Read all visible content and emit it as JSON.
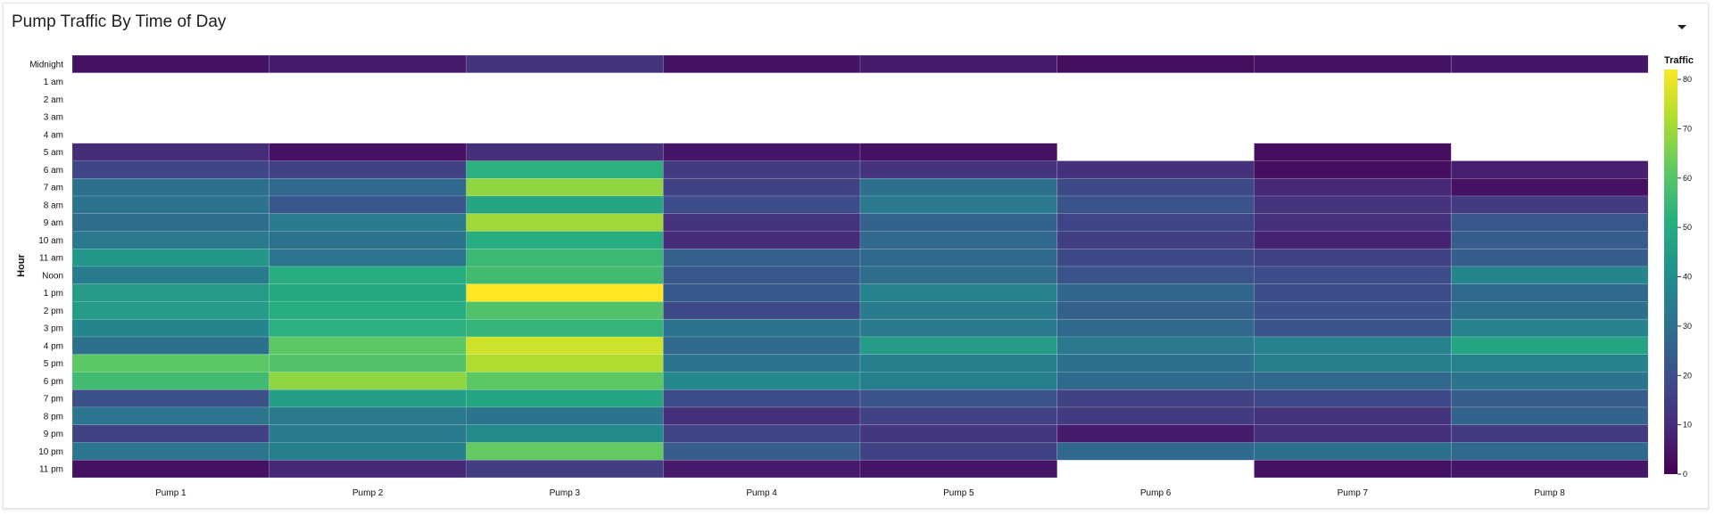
{
  "panel": {
    "title": "Pump Traffic By Time of Day",
    "menu_icon": "chevron-down-icon"
  },
  "chart_data": {
    "type": "heatmap",
    "title": "Pump Traffic By Time of Day",
    "xlabel": "",
    "ylabel": "Hour",
    "color_scale": "viridis",
    "legend_title": "Traffic",
    "legend_placement": "right",
    "legend_ticks": [
      0,
      10,
      20,
      30,
      40,
      50,
      60,
      70,
      80
    ],
    "zlim": [
      0,
      82
    ],
    "x_categories": [
      "Pump 1",
      "Pump 2",
      "Pump 3",
      "Pump 4",
      "Pump 5",
      "Pump 6",
      "Pump 7",
      "Pump 8"
    ],
    "y_categories": [
      "Midnight",
      "1 am",
      "2 am",
      "3 am",
      "4 am",
      "5 am",
      "6 am",
      "7 am",
      "8 am",
      "9 am",
      "10 am",
      "11 am",
      "Noon",
      "1 pm",
      "2 pm",
      "3 pm",
      "4 pm",
      "5 pm",
      "6 pm",
      "7 pm",
      "8 pm",
      "9 pm",
      "10 pm",
      "11 pm"
    ],
    "values": [
      [
        4,
        6,
        12,
        4,
        6,
        3,
        4,
        5
      ],
      [
        null,
        null,
        null,
        null,
        null,
        null,
        null,
        null
      ],
      [
        null,
        null,
        null,
        null,
        null,
        null,
        null,
        null
      ],
      [
        null,
        null,
        null,
        null,
        null,
        null,
        null,
        null
      ],
      [
        null,
        null,
        null,
        null,
        null,
        null,
        null,
        null
      ],
      [
        10,
        4,
        11,
        5,
        4,
        null,
        3,
        null
      ],
      [
        17,
        16,
        52,
        14,
        12,
        11,
        3,
        7
      ],
      [
        30,
        28,
        68,
        16,
        30,
        18,
        9,
        4
      ],
      [
        31,
        22,
        48,
        19,
        33,
        21,
        12,
        14
      ],
      [
        29,
        34,
        70,
        12,
        26,
        17,
        11,
        22
      ],
      [
        33,
        31,
        51,
        10,
        28,
        15,
        8,
        24
      ],
      [
        43,
        32,
        55,
        25,
        28,
        18,
        16,
        24
      ],
      [
        34,
        51,
        56,
        22,
        29,
        21,
        19,
        37
      ],
      [
        45,
        49,
        82,
        23,
        36,
        27,
        19,
        28
      ],
      [
        45,
        51,
        59,
        18,
        34,
        25,
        20,
        30
      ],
      [
        37,
        52,
        54,
        31,
        34,
        28,
        21,
        36
      ],
      [
        30,
        61,
        76,
        28,
        45,
        33,
        36,
        48
      ],
      [
        61,
        59,
        72,
        31,
        35,
        30,
        35,
        36
      ],
      [
        56,
        68,
        61,
        38,
        35,
        28,
        28,
        31
      ],
      [
        20,
        46,
        48,
        19,
        21,
        16,
        18,
        24
      ],
      [
        32,
        33,
        31,
        11,
        16,
        14,
        12,
        26
      ],
      [
        16,
        34,
        39,
        17,
        13,
        6,
        11,
        14
      ],
      [
        32,
        35,
        62,
        24,
        16,
        28,
        30,
        28
      ],
      [
        4,
        9,
        15,
        6,
        5,
        null,
        4,
        5
      ]
    ]
  }
}
